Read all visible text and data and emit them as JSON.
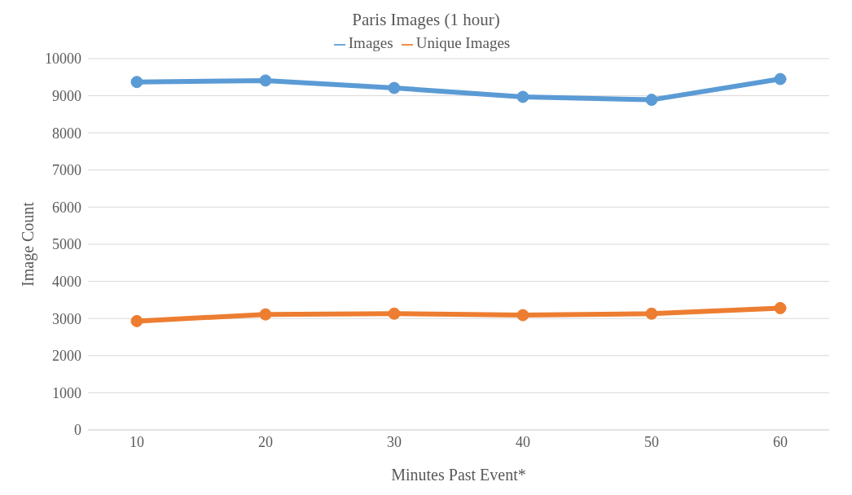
{
  "chart_data": {
    "type": "line",
    "title": "Paris Images (1 hour)",
    "xlabel": "Minutes Past Event*",
    "ylabel": "Image Count",
    "categories": [
      "10",
      "20",
      "30",
      "40",
      "50",
      "60"
    ],
    "series": [
      {
        "name": "Images",
        "color": "#5b9bd5",
        "values": [
          9370,
          9410,
          9210,
          8970,
          8890,
          9450
        ]
      },
      {
        "name": "Unique Images",
        "color": "#ed7d31",
        "values": [
          2930,
          3110,
          3130,
          3090,
          3130,
          3280
        ]
      }
    ],
    "ylim": [
      0,
      10000
    ],
    "yticks": [
      0,
      1000,
      2000,
      3000,
      4000,
      5000,
      6000,
      7000,
      8000,
      9000,
      10000
    ],
    "grid": "y",
    "legend": "top",
    "marker": "circle",
    "line_style": "solid"
  }
}
